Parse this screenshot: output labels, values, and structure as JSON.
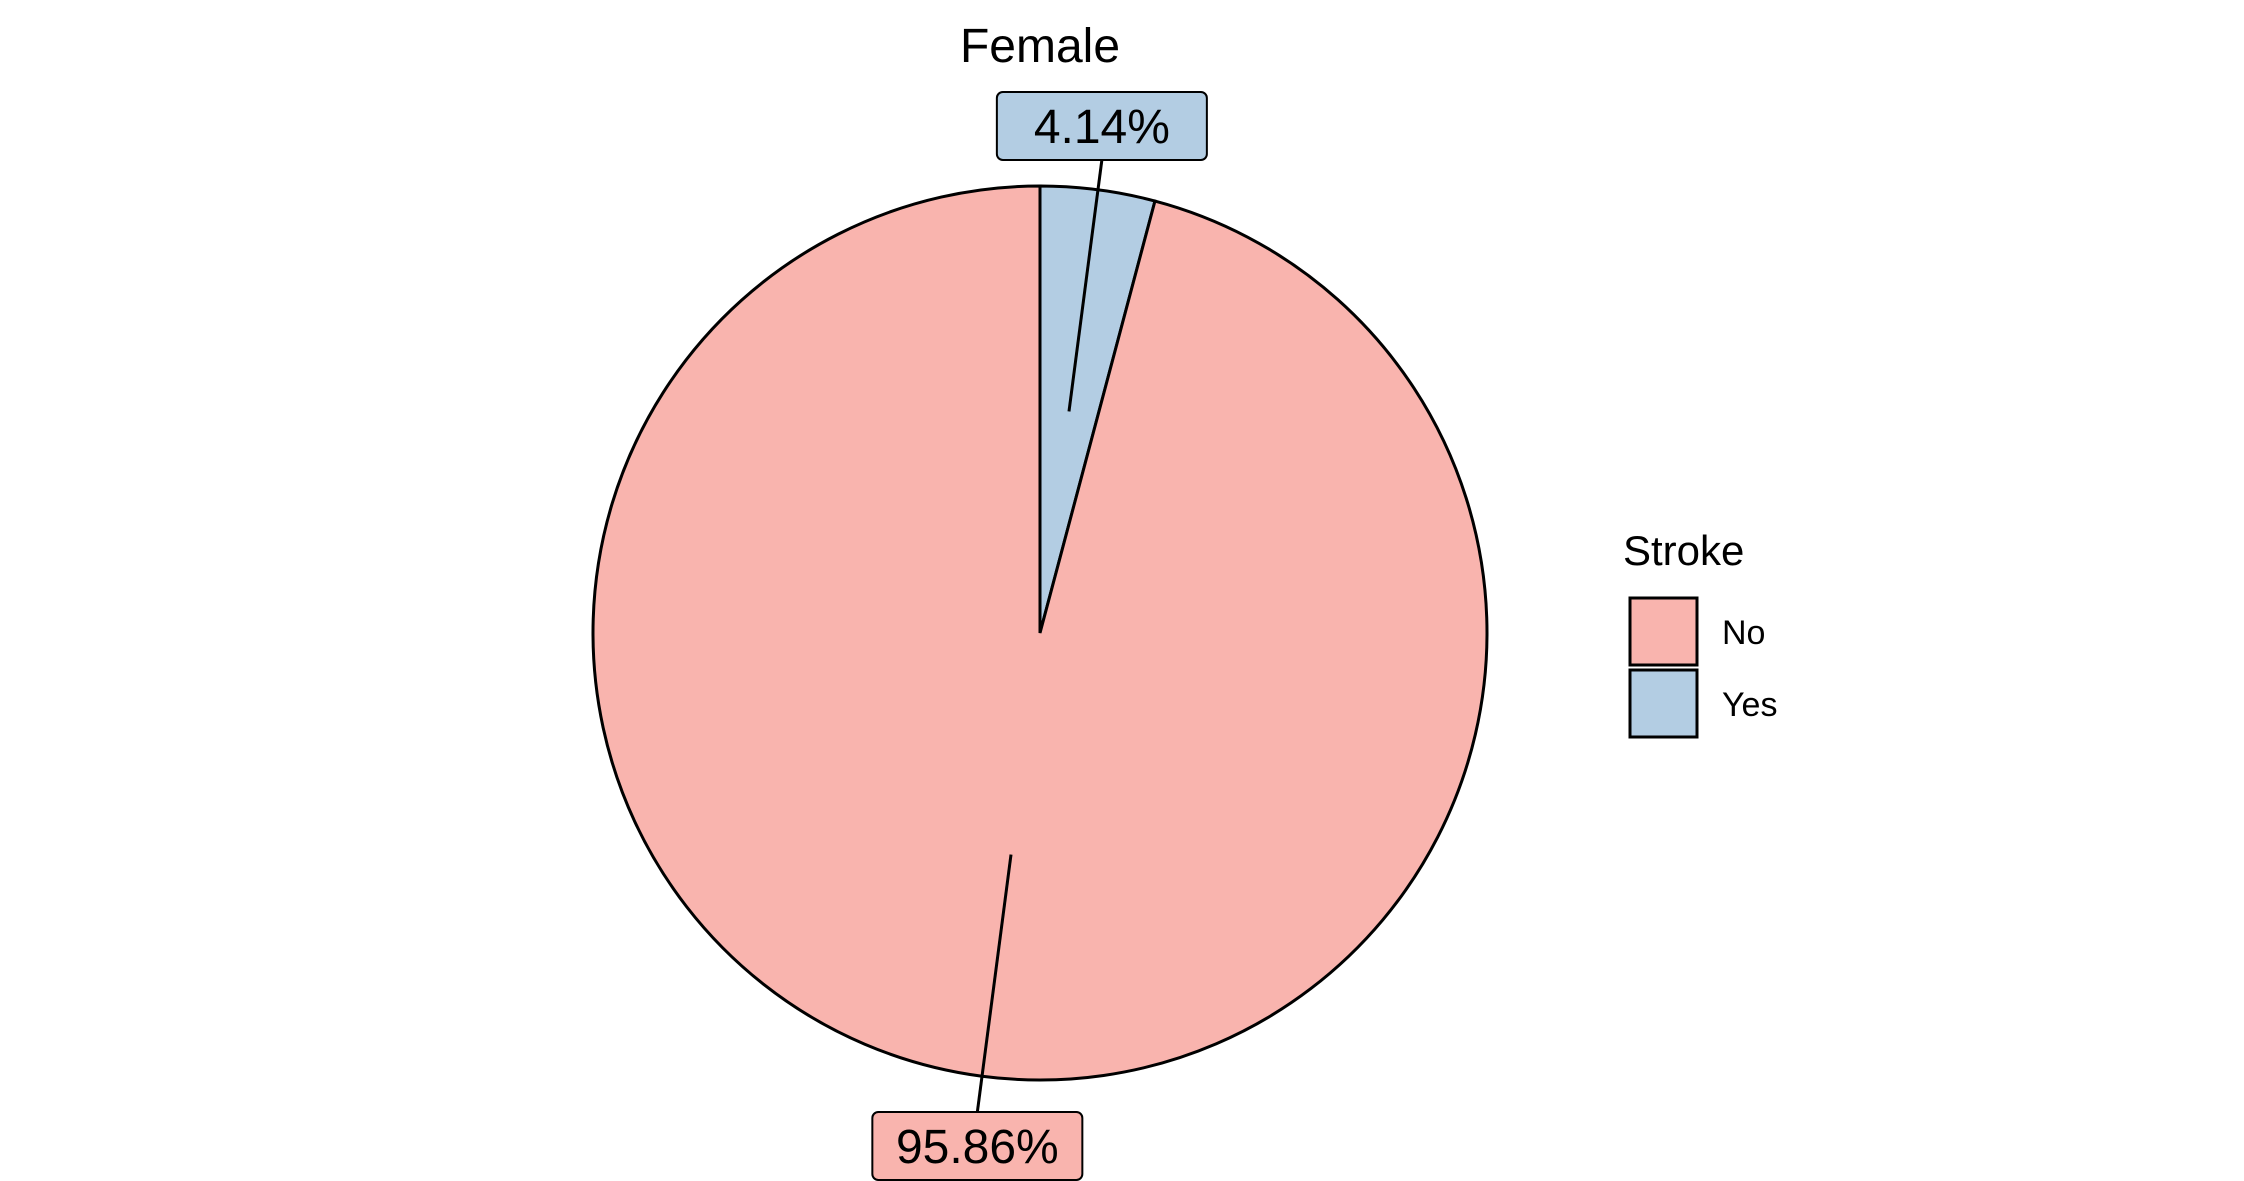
{
  "chart_data": {
    "type": "pie",
    "title": "Female",
    "categories": [
      "No",
      "Yes"
    ],
    "values": [
      95.86,
      4.14
    ],
    "labels": [
      "95.86%",
      "4.14%"
    ],
    "colors": [
      "#F9B4AE",
      "#B3CDE3"
    ],
    "start_angle_deg": 0,
    "direction": "clockwise",
    "legend": {
      "title": "Stroke",
      "placement": "right",
      "entries": [
        "No",
        "Yes"
      ]
    }
  }
}
